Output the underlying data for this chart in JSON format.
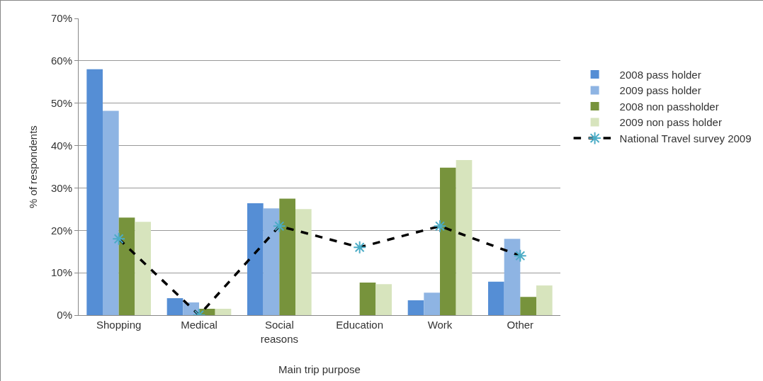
{
  "chart_data": {
    "type": "bar",
    "xlabel": "Main trip purpose",
    "ylabel": "% of respondents",
    "categories": [
      "Shopping",
      "Medical",
      "Social reasons",
      "Education",
      "Work",
      "Other"
    ],
    "series": [
      {
        "name": "2008 pass holder",
        "color": "#558ed5",
        "values": [
          58,
          4,
          26.4,
          0,
          3.5,
          7.9
        ]
      },
      {
        "name": "2009 pass holder",
        "color": "#8eb4e3",
        "values": [
          48.2,
          3,
          25.2,
          0,
          5.3,
          18
        ]
      },
      {
        "name": "2008 non passholder",
        "color": "#77933c",
        "values": [
          23,
          1.5,
          27.5,
          7.7,
          34.8,
          4.3
        ]
      },
      {
        "name": "2009 non pass holder",
        "color": "#d7e4bd",
        "values": [
          22,
          1.5,
          25,
          7.3,
          36.6,
          7
        ]
      },
      {
        "name": "National Travel survey 2009",
        "type": "line",
        "color": "#000000",
        "values": [
          18,
          0,
          21,
          16,
          21,
          14
        ],
        "marker": "cross",
        "line_style": "dashed"
      }
    ],
    "ylim": [
      0,
      70
    ],
    "yticks": [
      {
        "value": 0,
        "label": "0%"
      },
      {
        "value": 10,
        "label": "10%"
      },
      {
        "value": 20,
        "label": "20%"
      },
      {
        "value": 30,
        "label": "30%"
      },
      {
        "value": 40,
        "label": "40%"
      },
      {
        "value": 50,
        "label": "50%"
      },
      {
        "value": 60,
        "label": "60%"
      },
      {
        "value": 70,
        "label": "70%"
      }
    ],
    "grid": "y",
    "legend": "right"
  }
}
